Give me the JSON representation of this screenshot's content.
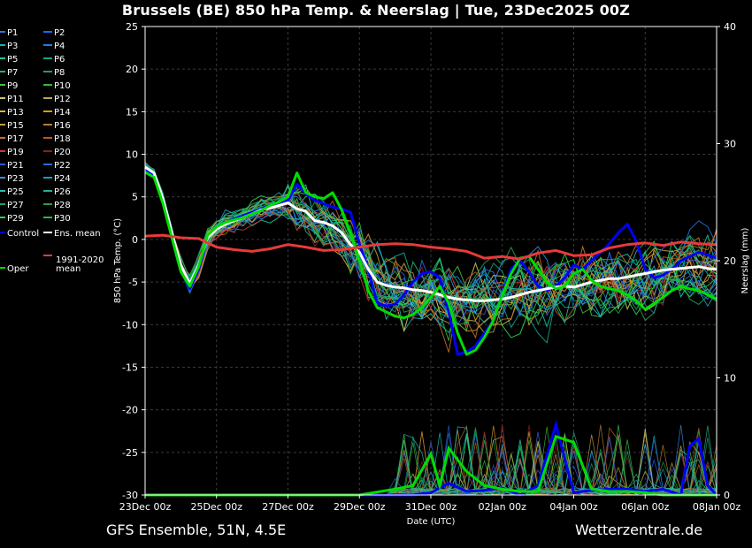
{
  "title": "Brussels  (BE)  850 hPa Temp. & Neerslag | Tue, 23Dec2025 00Z",
  "footer": {
    "left": "GFS Ensemble, 51N, 4.5E",
    "right": "Wetterzentrale.de"
  },
  "colors": {
    "background": "#000000",
    "grid": "#3a3a3a",
    "axis": "#ffffff",
    "control": "#0000ff",
    "oper": "#00dd00",
    "ens_mean": "#ffffff",
    "climate": "#e83a3a",
    "members": [
      "#3a6ed8",
      "#1f66ff",
      "#12b4b4",
      "#1a7ef0",
      "#12c8a0",
      "#0ea58e",
      "#1bb86a",
      "#1ea552",
      "#3cc83c",
      "#35b935",
      "#c8c85a",
      "#bba84a",
      "#d4b83c",
      "#d69a2a",
      "#c8a03c",
      "#c07a2a",
      "#c86a2a",
      "#b85a20",
      "#c83a3a",
      "#8a2020",
      "#2a5ad0",
      "#2a6ae0",
      "#3a8ae0",
      "#1aa0c0",
      "#20c0b0",
      "#20b090",
      "#20a070",
      "#20a050",
      "#30d050",
      "#20c040"
    ]
  },
  "chart_data": {
    "type": "line",
    "xlabel": "Date (UTC)",
    "ylabel": "850 hPa Temp. (°C)",
    "y2label": "Neerslag (mm)",
    "xlim": [
      0,
      16
    ],
    "ylim": [
      -30,
      25
    ],
    "y2lim": [
      0,
      40
    ],
    "grid": true,
    "legend_position": "left",
    "x_ticks": [
      0,
      2,
      4,
      6,
      8,
      10,
      12,
      14,
      16
    ],
    "x_tick_labels": [
      "23Dec 00z",
      "25Dec 00z",
      "27Dec 00z",
      "29Dec 00z",
      "31Dec 00z",
      "02Jan 00z",
      "04Jan 00z",
      "06Jan 00z",
      "08Jan 00z"
    ],
    "y_ticks": [
      25,
      20,
      15,
      10,
      5,
      0,
      -5,
      -10,
      -15,
      -20,
      -25,
      -30
    ],
    "y2_ticks": [
      40,
      30,
      20,
      10,
      0
    ],
    "legend": {
      "members": [
        "P1",
        "P2",
        "P3",
        "P4",
        "P5",
        "P6",
        "P7",
        "P8",
        "P9",
        "P10",
        "P11",
        "P12",
        "P13",
        "P14",
        "P15",
        "P16",
        "P17",
        "P18",
        "P19",
        "P20",
        "P21",
        "P22",
        "P23",
        "P24",
        "P25",
        "P26",
        "P27",
        "P28",
        "P29",
        "P30"
      ],
      "control": "Control",
      "ens_mean": "Ens. mean",
      "oper": "Oper",
      "climate": "1991-2020 mean"
    },
    "series": [
      {
        "name": "Control",
        "x": [
          0,
          0.25,
          0.5,
          0.75,
          1,
          1.25,
          1.5,
          1.75,
          2,
          2.25,
          2.5,
          2.75,
          3,
          3.25,
          3.5,
          3.75,
          4,
          4.25,
          4.5,
          4.75,
          5,
          5.25,
          5.5,
          5.75,
          6,
          6.25,
          6.5,
          6.75,
          7,
          7.25,
          7.5,
          7.75,
          8,
          8.25,
          8.5,
          8.75,
          9,
          9.25,
          9.5,
          9.75,
          10,
          10.25,
          10.5,
          10.75,
          11,
          11.25,
          11.5,
          11.75,
          12,
          12.25,
          12.5,
          12.75,
          13,
          13.25,
          13.5,
          13.75,
          14,
          14.25,
          14.5,
          14.75,
          15,
          15.25,
          15.5,
          15.75,
          16
        ],
        "y": [
          8.2,
          7.6,
          4.5,
          0.5,
          -3.5,
          -5.8,
          -3.5,
          0.2,
          1.5,
          2,
          2.4,
          2.8,
          3.2,
          3.6,
          4.0,
          4.2,
          4.6,
          6.5,
          5.4,
          4.6,
          4.2,
          3.8,
          3.6,
          3.2,
          -0.5,
          -3.5,
          -7.5,
          -7.8,
          -7.6,
          -6.5,
          -5.0,
          -4.0,
          -3.8,
          -4.5,
          -8.5,
          -13.5,
          -13.2,
          -12.5,
          -11.0,
          -9.5,
          -6.5,
          -3.5,
          -2.5,
          -3.8,
          -5.5,
          -6.0,
          -5.5,
          -4.5,
          -3.0,
          -3.5,
          -2.5,
          -1.5,
          -0.5,
          0.8,
          1.8,
          -0.2,
          -3.5,
          -4.5,
          -4.2,
          -3.5,
          -2.5,
          -2.0,
          -1.5,
          -1.8,
          -2.2
        ]
      },
      {
        "name": "Ens. mean",
        "x": [
          0,
          0.25,
          0.5,
          0.75,
          1,
          1.25,
          1.5,
          1.75,
          2,
          2.25,
          2.5,
          2.75,
          3,
          3.25,
          3.5,
          3.75,
          4,
          4.25,
          4.5,
          4.75,
          5,
          5.25,
          5.5,
          5.75,
          6,
          6.25,
          6.5,
          6.75,
          7,
          7.25,
          7.5,
          7.75,
          8,
          8.25,
          8.5,
          8.75,
          9,
          9.25,
          9.5,
          9.75,
          10,
          10.25,
          10.5,
          10.75,
          11,
          11.25,
          11.5,
          11.75,
          12,
          12.25,
          12.5,
          12.75,
          13,
          13.25,
          13.5,
          13.75,
          14,
          14.25,
          14.5,
          14.75,
          15,
          15.25,
          15.5,
          15.75,
          16
        ],
        "y": [
          8.5,
          7.8,
          4.8,
          0.8,
          -3.0,
          -5.2,
          -3.0,
          0.2,
          1.2,
          1.8,
          2.2,
          2.6,
          3.0,
          3.5,
          3.7,
          4.0,
          4.3,
          3.6,
          3.3,
          2.2,
          2.0,
          1.6,
          0.8,
          -0.6,
          -1.5,
          -3.5,
          -5.0,
          -5.4,
          -5.6,
          -5.7,
          -5.9,
          -6.0,
          -6.2,
          -6.5,
          -6.8,
          -7.0,
          -7.1,
          -7.2,
          -7.2,
          -7.1,
          -7.0,
          -6.8,
          -6.5,
          -6.2,
          -6.0,
          -5.8,
          -5.6,
          -5.5,
          -5.6,
          -5.3,
          -5.0,
          -4.8,
          -4.6,
          -4.6,
          -4.4,
          -4.2,
          -4.0,
          -3.8,
          -3.6,
          -3.5,
          -3.4,
          -3.3,
          -3.2,
          -3.4,
          -3.5
        ]
      },
      {
        "name": "Oper",
        "x": [
          0,
          0.25,
          0.5,
          0.75,
          1,
          1.25,
          1.5,
          1.75,
          2,
          2.25,
          2.5,
          2.75,
          3,
          3.25,
          3.5,
          3.75,
          4,
          4.25,
          4.5,
          4.75,
          5,
          5.25,
          5.5,
          5.75,
          6,
          6.25,
          6.5,
          6.75,
          7,
          7.25,
          7.5,
          7.75,
          8,
          8.25,
          8.5,
          8.75,
          9,
          9.25,
          9.5,
          9.75,
          10,
          10.25,
          10.5,
          10.75,
          11,
          11.25,
          11.5,
          11.75,
          12,
          12.25,
          12.5,
          12.75,
          13,
          13.25,
          13.5,
          13.75,
          14,
          14.25,
          14.5,
          14.75,
          15,
          15.25,
          15.5,
          15.75,
          16
        ],
        "y": [
          7.9,
          7.3,
          4.2,
          0.2,
          -3.8,
          -5.5,
          -3.2,
          0.5,
          1.5,
          2.0,
          2.3,
          2.6,
          3.0,
          3.4,
          4.0,
          4.4,
          5.0,
          7.8,
          5.5,
          5.0,
          4.8,
          5.5,
          3.5,
          0.8,
          -2.5,
          -6.0,
          -8.0,
          -8.5,
          -9.0,
          -9.2,
          -8.8,
          -8.0,
          -6.8,
          -5.5,
          -7.5,
          -11.0,
          -13.5,
          -13.0,
          -11.5,
          -9.5,
          -6.5,
          -4.0,
          -2.2,
          -2.0,
          -3.5,
          -5.0,
          -5.8,
          -5.5,
          -4.0,
          -3.5,
          -4.8,
          -5.5,
          -5.8,
          -6.0,
          -6.5,
          -7.2,
          -8.2,
          -7.5,
          -6.8,
          -6.0,
          -5.5,
          -5.8,
          -6.0,
          -6.5,
          -7.0
        ]
      },
      {
        "name": "1991-2020 mean",
        "x": [
          0,
          0.5,
          1,
          1.5,
          2,
          2.5,
          3,
          3.5,
          4,
          4.5,
          5,
          5.5,
          6,
          6.5,
          7,
          7.5,
          8,
          8.5,
          9,
          9.5,
          10,
          10.5,
          11,
          11.5,
          12,
          12.5,
          13,
          13.5,
          14,
          14.5,
          15,
          15.5,
          16
        ],
        "y": [
          0.4,
          0.5,
          0.2,
          0.1,
          -0.9,
          -1.2,
          -1.4,
          -1.1,
          -0.6,
          -0.9,
          -1.3,
          -1.2,
          -0.9,
          -0.6,
          -0.5,
          -0.6,
          -0.9,
          -1.1,
          -1.4,
          -2.2,
          -2.0,
          -2.3,
          -1.6,
          -1.3,
          -1.9,
          -1.8,
          -1.0,
          -0.6,
          -0.4,
          -0.7,
          -0.3,
          -0.5,
          -0.6
        ]
      }
    ],
    "precip_series": [
      {
        "name": "Control",
        "x": [
          0,
          7.5,
          8,
          8.5,
          9,
          9.5,
          10,
          10.5,
          11,
          11.5,
          12,
          12.5,
          13,
          13.5,
          14,
          14.5,
          15,
          15.25,
          15.5,
          15.75,
          16
        ],
        "y": [
          0,
          0,
          0.2,
          1.0,
          0.3,
          0.4,
          0.6,
          0,
          0.8,
          6.0,
          0.2,
          0.4,
          0.5,
          0.5,
          0.3,
          0.5,
          0,
          4.2,
          4.8,
          0.8,
          0
        ]
      },
      {
        "name": "Oper",
        "x": [
          0,
          6,
          7,
          7.5,
          8,
          8.25,
          8.5,
          9,
          9.5,
          10,
          10.5,
          11,
          11.5,
          12,
          12.5,
          13,
          13.5,
          14,
          14.5,
          15,
          16
        ],
        "y": [
          0,
          0,
          0.5,
          0.8,
          3.5,
          0.8,
          4.0,
          2.0,
          0.8,
          0.5,
          0.3,
          0.3,
          5.0,
          4.5,
          0.5,
          0.3,
          0.3,
          0.2,
          0,
          0,
          0
        ]
      }
    ]
  }
}
